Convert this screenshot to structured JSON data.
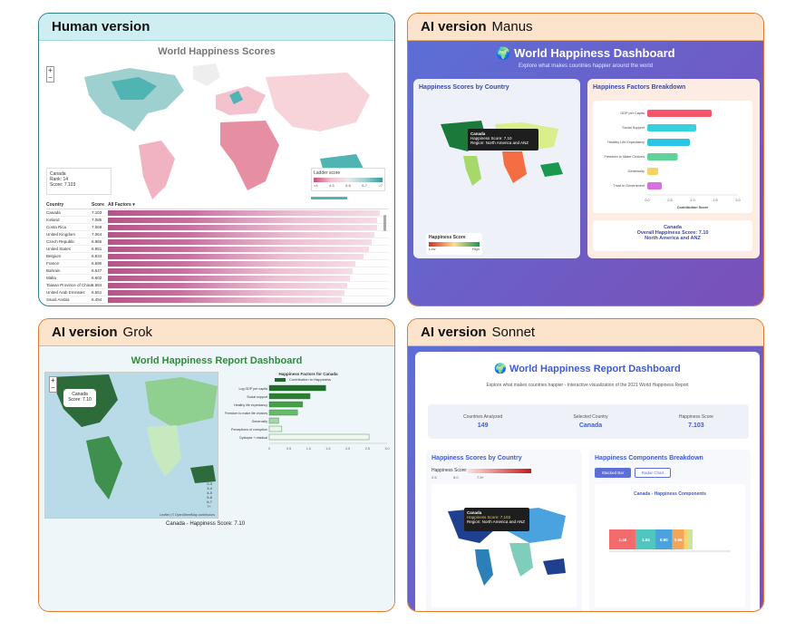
{
  "panels": {
    "human": {
      "label_bold": "Human version",
      "title": "World Happiness Scores",
      "map_info": [
        "Canada",
        "Rank: 14",
        "Score: 7.103"
      ],
      "legend_title": "Ladder score",
      "legend_ticks": [
        "<4",
        "4-5",
        "5-6",
        "6-7",
        ">7"
      ],
      "table_headers": {
        "country": "Country",
        "score": "Score",
        "factors": "All Factors ▾"
      },
      "rows": [
        {
          "country": "Canada",
          "score": "7.103"
        },
        {
          "country": "Iceland",
          "score": "7.085"
        },
        {
          "country": "Costa Rica",
          "score": "7.069"
        },
        {
          "country": "United Kingdom",
          "score": "7.064"
        },
        {
          "country": "Czech Republic",
          "score": "6.965"
        },
        {
          "country": "United States",
          "score": "6.951"
        },
        {
          "country": "Belgium",
          "score": "6.834"
        },
        {
          "country": "France",
          "score": "6.690"
        },
        {
          "country": "Bahrain",
          "score": "6.647"
        },
        {
          "country": "Malta",
          "score": "6.602"
        },
        {
          "country": "Taiwan Province of China",
          "score": "6.584"
        },
        {
          "country": "United Arab Emirates",
          "score": "6.561"
        },
        {
          "country": "Saudi Arabia",
          "score": "6.494"
        }
      ],
      "row_fill": [
        1.0,
        0.99,
        0.99,
        0.98,
        0.97,
        0.96,
        0.94,
        0.91,
        0.9,
        0.89,
        0.88,
        0.87,
        0.86
      ]
    },
    "manus": {
      "label_bold": "AI version",
      "label_model": "Manus",
      "title": "🌍 World Happiness Dashboard",
      "subtitle": "Explore what makes countries happier around the world",
      "map_card_title": "Happiness Scores by Country",
      "factors_card_title": "Happiness Factors Breakdown",
      "tooltip": [
        "Canada",
        "Happiness Score: 7.10",
        "Region: North America and ANZ"
      ],
      "legend_title": "Happiness Score",
      "legend_low": "Low",
      "legend_high": "High",
      "factors": [
        {
          "label": "GDP per Capita",
          "value": 1.42,
          "color": "#f4566a"
        },
        {
          "label": "Social Support",
          "value": 1.08,
          "color": "#36d1dc"
        },
        {
          "label": "Healthy Life Expectancy",
          "value": 0.94,
          "color": "#2bc4e6"
        },
        {
          "label": "Freedom to Make Choices",
          "value": 0.67,
          "color": "#5fd39a"
        },
        {
          "label": "Generosity",
          "value": 0.24,
          "color": "#f6d365"
        },
        {
          "label": "Trust in Government",
          "value": 0.32,
          "color": "#d96fe0"
        }
      ],
      "axis_ticks": [
        "0.0",
        "0.5",
        "1.0",
        "1.5",
        "2.0"
      ],
      "axis_label": "Contribution Score",
      "summary": [
        "Canada",
        "Overall Happiness Score: 7.10",
        "North America and ANZ"
      ]
    },
    "grok": {
      "label_bold": "AI version",
      "label_model": "Grok",
      "title": "World Happiness Report Dashboard",
      "popup": [
        "Canada",
        "Score: 7.10"
      ],
      "legend": [
        "0-3",
        "3-4",
        "4-5",
        "5-6",
        "6-7",
        "7+"
      ],
      "attribution": "Leaflet | © OpenStreetMap contributors",
      "caption": "Canada - Happiness Score: 7.10",
      "chart_title": "Happiness Factors for Canada",
      "chart_legend": "Contribution to Happiness",
      "factors": [
        {
          "label": "Log GDP per capita",
          "value": 1.44
        },
        {
          "label": "Social support",
          "value": 1.04
        },
        {
          "label": "Healthy life expectancy",
          "value": 0.85
        },
        {
          "label": "Freedom to make life choices",
          "value": 0.72
        },
        {
          "label": "Generosity",
          "value": 0.24
        },
        {
          "label": "Perceptions of corruption",
          "value": 0.32
        },
        {
          "label": "Dystopia + residual",
          "value": 2.54
        }
      ],
      "axis_ticks": [
        "0",
        "0.5",
        "1.0",
        "1.5",
        "2.0",
        "2.5",
        "3.0"
      ]
    },
    "sonnet": {
      "label_bold": "AI version",
      "label_model": "Sonnet",
      "title": "🌍 World Happiness Report Dashboard",
      "subtitle": "Explore what makes countries happier - Interactive visualization of the 2021 World Happiness Report",
      "stats": [
        {
          "label": "Countries Analyzed",
          "value": "149"
        },
        {
          "label": "Selected Country",
          "value": "Canada"
        },
        {
          "label": "Happiness Score",
          "value": "7.103"
        }
      ],
      "map_card_title": "Happiness Scores by Country",
      "score_legend_label": "Happiness Score:",
      "score_ticks": [
        "2.5",
        "5.0",
        "7.5+"
      ],
      "tooltip": [
        "Canada",
        "Happiness Score: 7.103",
        "Region: North America and ANZ"
      ],
      "components_title": "Happiness Components Breakdown",
      "btn_stacked": "Stacked Bar",
      "btn_radar": "Radar Chart",
      "chart_title": "Canada - Happiness Components",
      "segments": [
        {
          "label": "1.45",
          "value": 1.45,
          "color": "#f36b6b"
        },
        {
          "label": "1.04",
          "value": 1.04,
          "color": "#4fc7c0"
        },
        {
          "label": "0.90",
          "value": 0.9,
          "color": "#4aa3df"
        },
        {
          "label": "0.65",
          "value": 0.65,
          "color": "#f2a65a"
        },
        {
          "label": "",
          "value": 0.25,
          "color": "#f9d56e"
        },
        {
          "label": "",
          "value": 0.2,
          "color": "#c7e6a3"
        }
      ]
    }
  }
}
